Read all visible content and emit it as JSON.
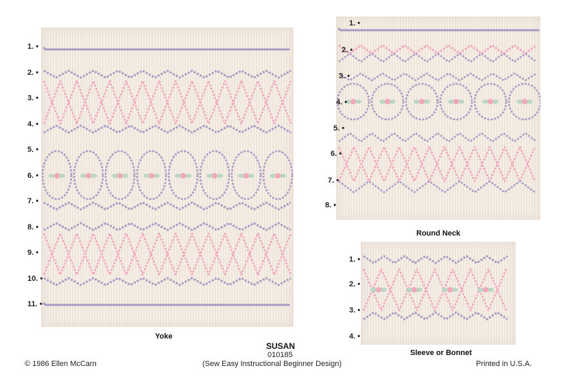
{
  "yoke": {
    "caption": "Yoke",
    "rows": [
      "1.",
      "2.",
      "3.",
      "4.",
      "5.",
      "6.",
      "7.",
      "8.",
      "9.",
      "10.",
      "11."
    ]
  },
  "round_neck": {
    "caption": "Round Neck",
    "rows": [
      "1.",
      "2.",
      "3.",
      "4.",
      "5.",
      "6.",
      "7.",
      "8."
    ]
  },
  "sleeve": {
    "caption": "Sleeve or Bonnet",
    "rows": [
      "1.",
      "2.",
      "3.",
      "4."
    ]
  },
  "footer": {
    "title": "SUSAN",
    "code": "010185",
    "subtitle": "(Sew Easy Instructional Beginner Design)",
    "copyright": "© 1986 Ellen McCarn",
    "printed": "Printed in U.S.A."
  },
  "colors": {
    "fabric": "#f6efe8",
    "lavender": "#a99ac4",
    "pink": "#f2a7bd",
    "green": "#b9d8c4"
  }
}
